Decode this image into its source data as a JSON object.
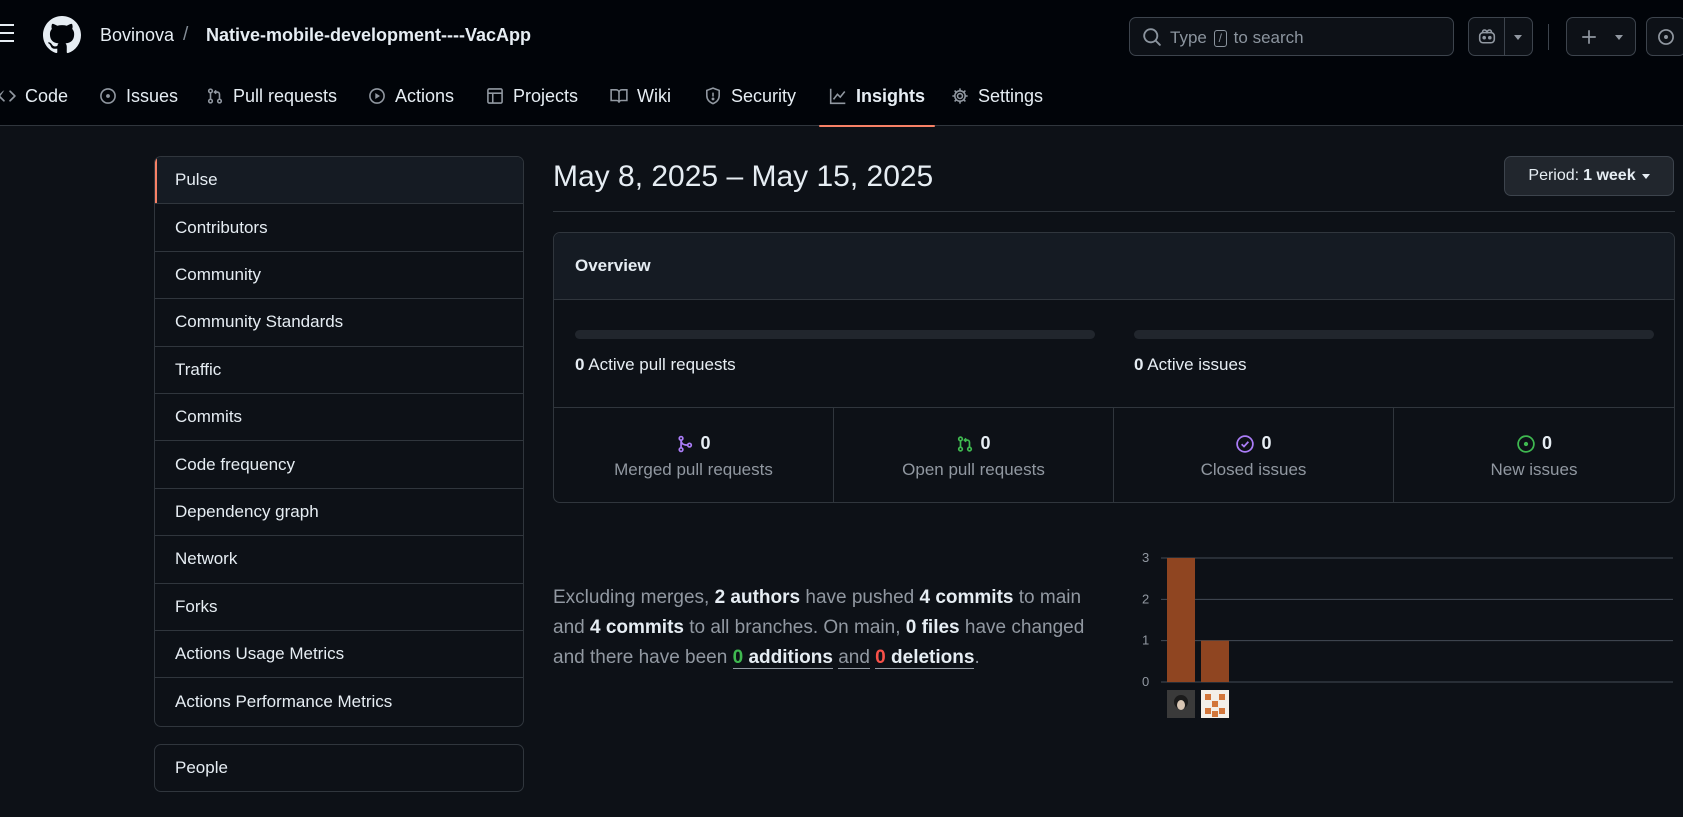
{
  "header": {
    "owner": "Bovinova",
    "separator": "/",
    "repo": "Native-mobile-development----VacApp",
    "search_prefix": "Type",
    "search_key": "/",
    "search_suffix": "to search"
  },
  "nav": {
    "code": "Code",
    "issues": "Issues",
    "pulls": "Pull requests",
    "actions": "Actions",
    "projects": "Projects",
    "wiki": "Wiki",
    "security": "Security",
    "insights": "Insights",
    "settings": "Settings"
  },
  "sidebar": {
    "items": [
      {
        "label": "Pulse"
      },
      {
        "label": "Contributors"
      },
      {
        "label": "Community"
      },
      {
        "label": "Community Standards"
      },
      {
        "label": "Traffic"
      },
      {
        "label": "Commits"
      },
      {
        "label": "Code frequency"
      },
      {
        "label": "Dependency graph"
      },
      {
        "label": "Network"
      },
      {
        "label": "Forks"
      },
      {
        "label": "Actions Usage Metrics"
      },
      {
        "label": "Actions Performance Metrics"
      }
    ],
    "people": "People"
  },
  "main": {
    "date_range": "May 8, 2025 – May 15, 2025",
    "period_label": "Period:",
    "period_value": "1 week",
    "overview_title": "Overview",
    "active_prs_count": "0",
    "active_prs_label": "Active pull requests",
    "active_issues_count": "0",
    "active_issues_label": "Active issues",
    "stats": {
      "merged": {
        "count": "0",
        "label": "Merged pull requests"
      },
      "open": {
        "count": "0",
        "label": "Open pull requests"
      },
      "closed": {
        "count": "0",
        "label": "Closed issues"
      },
      "new": {
        "count": "0",
        "label": "New issues"
      }
    }
  },
  "summary": {
    "p1": "Excluding merges,",
    "authors": "2 authors",
    "p2": "have pushed",
    "commits_main": "4 commits",
    "p3": "to main and",
    "commits_all": "4 commits",
    "p4": "to all branches. On main,",
    "files": "0 files",
    "p5": "have changed and there have been",
    "additions_num": "0",
    "additions_word": "additions",
    "p6": "and",
    "deletions_num": "0",
    "deletions_word": "deletions",
    "p7": "."
  },
  "colors": {
    "accent_underline": "#f78166",
    "bar": "#8f4521",
    "merged_icon": "#ab7df8",
    "open_icon": "#3fb950",
    "closed_icon": "#ab7df8",
    "new_icon": "#3fb950"
  },
  "chart_data": {
    "type": "bar",
    "categories": [
      "author-1",
      "author-2"
    ],
    "values": [
      3,
      1
    ],
    "title": "",
    "xlabel": "",
    "ylabel": "",
    "yticks": [
      "0",
      "1",
      "2",
      "3"
    ],
    "ylim": [
      0,
      3
    ],
    "grid": true
  }
}
